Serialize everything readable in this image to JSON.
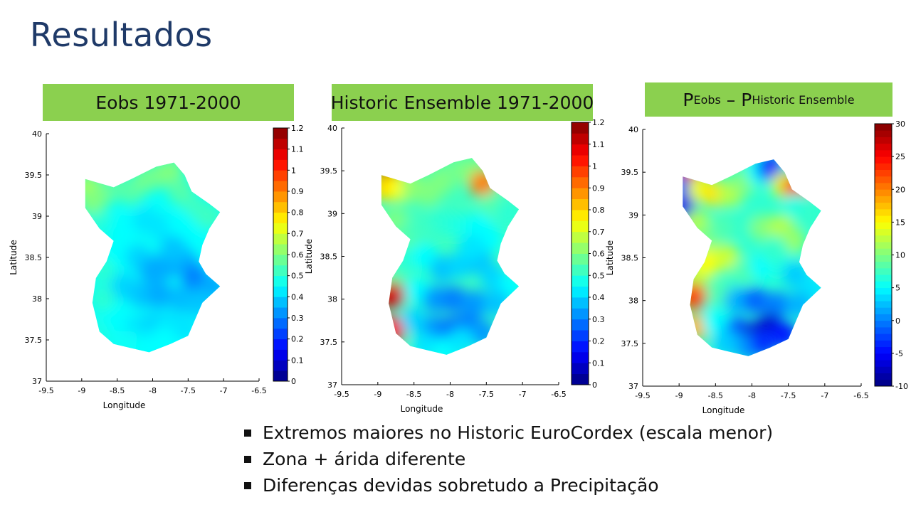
{
  "slide": {
    "title": "Resultados",
    "bullets": [
      "Extremos maiores no Historic EuroCordex (escala menor)",
      "Zona + árida diferente",
      "Diferenças devidas sobretudo a Precipitação"
    ]
  },
  "banners": {
    "eobs": "Eobs 1971-2000",
    "historic": "Historic Ensemble 1971-2000",
    "diff": {
      "p1": "P",
      "sub1": "Eobs",
      "minus": " – ",
      "p2": "P",
      "sub2": "Historic Ensemble"
    }
  },
  "colors": {
    "banner": "#8bd04f",
    "title": "#1f3a68",
    "marker": "#3b7ea8"
  },
  "chart_data": [
    {
      "type": "heatmap",
      "colormap": "jet",
      "colorbar_levels": 24,
      "xlabel": "Longitude",
      "ylabel": "Latitude",
      "xlim": [
        -9.5,
        -6.5
      ],
      "ylim": [
        37,
        40
      ],
      "xticks": [
        "-9.5",
        "-9",
        "-8.5",
        "-8",
        "-7.5",
        "-7",
        "-6.5"
      ],
      "yticks": [
        "37",
        "37.5",
        "38",
        "38.5",
        "39",
        "39.5",
        "40"
      ],
      "clim": [
        0,
        1.2
      ],
      "cticks": [
        "0",
        "0.1",
        "0.2",
        "0.3",
        "0.4",
        "0.5",
        "0.6",
        "0.7",
        "0.8",
        "0.9",
        "1",
        "1.1",
        "1.2"
      ],
      "points": [
        [
          -8.9,
          39.35,
          0.65
        ],
        [
          -8.85,
          39.15,
          0.6
        ],
        [
          -8.7,
          39.3,
          0.6
        ],
        [
          -8.5,
          39.35,
          0.55
        ],
        [
          -8.3,
          39.3,
          0.55
        ],
        [
          -8.1,
          39.45,
          0.58
        ],
        [
          -7.9,
          39.5,
          0.58
        ],
        [
          -7.75,
          39.55,
          0.6
        ],
        [
          -7.6,
          39.3,
          0.55
        ],
        [
          -7.4,
          39.1,
          0.52
        ],
        [
          -7.2,
          39.0,
          0.52
        ],
        [
          -8.75,
          38.9,
          0.5
        ],
        [
          -8.6,
          38.75,
          0.47
        ],
        [
          -8.4,
          38.85,
          0.45
        ],
        [
          -8.1,
          38.95,
          0.42
        ],
        [
          -7.85,
          38.85,
          0.42
        ],
        [
          -7.6,
          38.9,
          0.45
        ],
        [
          -7.45,
          38.75,
          0.45
        ],
        [
          -8.7,
          38.35,
          0.5
        ],
        [
          -8.7,
          38.0,
          0.5
        ],
        [
          -8.75,
          37.6,
          0.48
        ],
        [
          -8.45,
          38.55,
          0.45
        ],
        [
          -8.2,
          38.5,
          0.4
        ],
        [
          -8.0,
          38.35,
          0.35
        ],
        [
          -7.8,
          38.4,
          0.35
        ],
        [
          -7.55,
          38.45,
          0.35
        ],
        [
          -7.4,
          38.25,
          0.3
        ],
        [
          -7.15,
          38.15,
          0.35
        ],
        [
          -8.4,
          38.15,
          0.4
        ],
        [
          -8.15,
          38.05,
          0.38
        ],
        [
          -7.9,
          38.05,
          0.35
        ],
        [
          -7.6,
          38.0,
          0.37
        ],
        [
          -7.35,
          37.95,
          0.38
        ],
        [
          -8.5,
          37.75,
          0.45
        ],
        [
          -8.2,
          37.65,
          0.42
        ],
        [
          -7.95,
          37.7,
          0.4
        ],
        [
          -7.75,
          37.7,
          0.42
        ],
        [
          -7.55,
          37.65,
          0.42
        ],
        [
          -8.35,
          37.45,
          0.46
        ],
        [
          -8.05,
          37.4,
          0.45
        ],
        [
          -7.85,
          37.5,
          0.45
        ],
        [
          -7.7,
          38.6,
          0.38
        ]
      ]
    },
    {
      "type": "heatmap",
      "colormap": "jet",
      "colorbar_levels": 24,
      "xlabel": "Longitude",
      "ylabel": "Latitude",
      "xlim": [
        -9.5,
        -6.5
      ],
      "ylim": [
        37,
        40
      ],
      "xticks": [
        "-9.5",
        "-9",
        "-8.5",
        "-8",
        "-7.5",
        "-7",
        "-6.5"
      ],
      "yticks": [
        "37",
        "37.5",
        "38",
        "38.5",
        "39",
        "39.5",
        "40"
      ],
      "clim": [
        0,
        1.2
      ],
      "cticks": [
        "0",
        "0.1",
        "0.2",
        "0.3",
        "0.4",
        "0.5",
        "0.6",
        "0.7",
        "0.8",
        "0.9",
        "1",
        "1.1",
        "1.2"
      ],
      "points": [
        [
          -8.85,
          39.45,
          1.15
        ],
        [
          -8.9,
          39.3,
          0.8
        ],
        [
          -8.7,
          39.3,
          0.75
        ],
        [
          -8.5,
          39.3,
          0.62
        ],
        [
          -8.3,
          39.25,
          0.6
        ],
        [
          -8.1,
          39.4,
          0.6
        ],
        [
          -7.9,
          39.5,
          0.58
        ],
        [
          -7.7,
          39.5,
          0.6
        ],
        [
          -7.55,
          39.35,
          0.9
        ],
        [
          -7.4,
          39.1,
          0.55
        ],
        [
          -7.2,
          39.0,
          0.5
        ],
        [
          -8.75,
          38.9,
          0.6
        ],
        [
          -8.6,
          38.75,
          0.55
        ],
        [
          -8.4,
          38.85,
          0.52
        ],
        [
          -8.1,
          38.9,
          0.5
        ],
        [
          -7.85,
          38.85,
          0.48
        ],
        [
          -7.6,
          38.85,
          0.45
        ],
        [
          -7.45,
          38.7,
          0.45
        ],
        [
          -8.75,
          38.3,
          0.55
        ],
        [
          -8.8,
          38.05,
          1.1
        ],
        [
          -8.8,
          37.65,
          1.05
        ],
        [
          -8.6,
          38.45,
          0.5
        ],
        [
          -8.35,
          38.5,
          0.45
        ],
        [
          -8.1,
          38.35,
          0.38
        ],
        [
          -7.85,
          38.4,
          0.4
        ],
        [
          -7.6,
          38.45,
          0.38
        ],
        [
          -7.4,
          38.25,
          0.4
        ],
        [
          -7.15,
          38.15,
          0.45
        ],
        [
          -8.45,
          38.1,
          0.45
        ],
        [
          -8.2,
          38.0,
          0.33
        ],
        [
          -7.95,
          38.0,
          0.3
        ],
        [
          -7.65,
          37.95,
          0.33
        ],
        [
          -7.35,
          37.95,
          0.38
        ],
        [
          -8.5,
          37.75,
          0.4
        ],
        [
          -8.2,
          37.65,
          0.32
        ],
        [
          -7.95,
          37.65,
          0.28
        ],
        [
          -7.75,
          37.7,
          0.3
        ],
        [
          -7.55,
          37.6,
          0.33
        ],
        [
          -8.35,
          37.45,
          0.42
        ],
        [
          -8.05,
          37.4,
          0.45
        ],
        [
          -7.85,
          37.5,
          0.42
        ],
        [
          -7.7,
          38.6,
          0.42
        ]
      ]
    },
    {
      "type": "heatmap",
      "colormap": "jet",
      "colorbar_levels": 40,
      "xlabel": "Longitude",
      "ylabel": "Latitude",
      "xlim": [
        -9.5,
        -6.5
      ],
      "ylim": [
        37,
        40
      ],
      "xticks": [
        "-9.5",
        "-9",
        "-8.5",
        "-8",
        "-7.5",
        "-7",
        "-6.5"
      ],
      "yticks": [
        "37",
        "37.5",
        "38",
        "38.5",
        "39",
        "39.5",
        "40"
      ],
      "clim": [
        -10,
        30
      ],
      "cticks": [
        "-10",
        "-5",
        "0",
        "5",
        "10",
        "15",
        "20",
        "25",
        "30"
      ],
      "points": [
        [
          -8.85,
          39.45,
          24
        ],
        [
          -8.9,
          39.3,
          -5
        ],
        [
          -8.95,
          39.05,
          -6
        ],
        [
          -8.7,
          39.3,
          14
        ],
        [
          -8.5,
          39.25,
          16
        ],
        [
          -8.3,
          39.25,
          12
        ],
        [
          -8.1,
          39.4,
          10
        ],
        [
          -7.9,
          39.5,
          5
        ],
        [
          -7.75,
          39.55,
          -3
        ],
        [
          -7.55,
          39.35,
          14
        ],
        [
          -7.4,
          39.3,
          24
        ],
        [
          -7.4,
          39.1,
          6
        ],
        [
          -7.2,
          39.0,
          7
        ],
        [
          -8.75,
          38.9,
          12
        ],
        [
          -8.6,
          38.75,
          10
        ],
        [
          -8.4,
          38.85,
          8
        ],
        [
          -8.1,
          38.9,
          7
        ],
        [
          -7.85,
          38.85,
          10
        ],
        [
          -7.6,
          38.85,
          12
        ],
        [
          -7.45,
          38.7,
          11
        ],
        [
          -8.75,
          38.3,
          12
        ],
        [
          -8.8,
          38.05,
          22
        ],
        [
          -8.75,
          37.7,
          18
        ],
        [
          -8.6,
          38.45,
          15
        ],
        [
          -8.35,
          38.5,
          13
        ],
        [
          -8.1,
          38.35,
          8
        ],
        [
          -7.85,
          38.4,
          5
        ],
        [
          -7.6,
          38.45,
          6
        ],
        [
          -7.4,
          38.3,
          3
        ],
        [
          -7.15,
          38.15,
          4
        ],
        [
          -8.45,
          38.1,
          8
        ],
        [
          -8.2,
          38.0,
          2
        ],
        [
          -7.95,
          38.0,
          -1
        ],
        [
          -7.65,
          37.95,
          0
        ],
        [
          -7.35,
          37.95,
          2
        ],
        [
          -8.5,
          37.75,
          5
        ],
        [
          -8.2,
          37.65,
          -2
        ],
        [
          -7.95,
          37.6,
          -7
        ],
        [
          -7.75,
          37.7,
          -7
        ],
        [
          -7.55,
          37.6,
          -4
        ],
        [
          -8.35,
          37.5,
          3
        ],
        [
          -8.05,
          37.45,
          1
        ],
        [
          -7.85,
          37.5,
          -3
        ],
        [
          -7.7,
          38.6,
          7
        ]
      ]
    }
  ]
}
